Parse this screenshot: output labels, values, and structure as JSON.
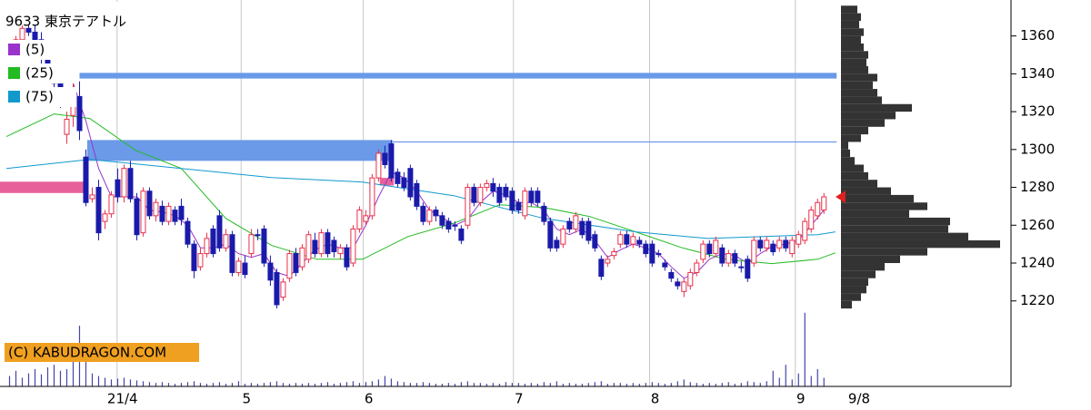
{
  "chart_data": {
    "type": "candlestick",
    "title": "9633 東京テアトル",
    "watermark": "(C) KABUDRAGON.COM",
    "last_date": "9/8",
    "xlim": [
      -1.5,
      157.4
    ],
    "ylim": [
      1210,
      1379
    ],
    "yticks": [
      1220,
      1240,
      1260,
      1280,
      1300,
      1320,
      1340,
      1360
    ],
    "xticks": [
      {
        "value": 16.9,
        "label": "21/4"
      },
      {
        "value": 36.4,
        "label": "5"
      },
      {
        "value": 55.6,
        "label": "6"
      },
      {
        "value": 79.2,
        "label": "7"
      },
      {
        "value": 100.6,
        "label": "8"
      },
      {
        "value": 123.5,
        "label": "9"
      }
    ],
    "up_color": "#e8304a",
    "down_color": "#1a1aaa",
    "ohlc": [
      [
        1352,
        1356,
        1348,
        1354
      ],
      [
        1354,
        1360,
        1350,
        1358
      ],
      [
        1358,
        1366,
        1355,
        1364
      ],
      [
        1364,
        1372,
        1360,
        1362
      ],
      [
        1362,
        1368,
        1356,
        1358
      ],
      [
        1358,
        1362,
        1345,
        1348
      ],
      [
        1348,
        1352,
        1336,
        1340
      ],
      [
        1340,
        1345,
        1330,
        1335
      ],
      [
        1335,
        1340,
        1322,
        1325
      ],
      [
        1308,
        1320,
        1303,
        1316
      ],
      [
        1318,
        1335,
        1312,
        1328
      ],
      [
        1328,
        1336,
        1305,
        1310
      ],
      [
        1296,
        1300,
        1270,
        1272
      ],
      [
        1274,
        1280,
        1272,
        1276
      ],
      [
        1280,
        1284,
        1252,
        1256
      ],
      [
        1262,
        1268,
        1258,
        1266
      ],
      [
        1266,
        1278,
        1264,
        1276
      ],
      [
        1284,
        1290,
        1272,
        1275
      ],
      [
        1275,
        1292,
        1272,
        1290
      ],
      [
        1290,
        1294,
        1272,
        1274
      ],
      [
        1274,
        1277,
        1252,
        1255
      ],
      [
        1256,
        1280,
        1254,
        1278
      ],
      [
        1278,
        1280,
        1263,
        1265
      ],
      [
        1265,
        1274,
        1262,
        1272
      ],
      [
        1270,
        1273,
        1260,
        1262
      ],
      [
        1262,
        1272,
        1260,
        1270
      ],
      [
        1268,
        1270,
        1260,
        1262
      ],
      [
        1270,
        1274,
        1260,
        1263
      ],
      [
        1262,
        1264,
        1248,
        1250
      ],
      [
        1250,
        1252,
        1232,
        1236
      ],
      [
        1238,
        1248,
        1236,
        1245
      ],
      [
        1245,
        1256,
        1243,
        1253
      ],
      [
        1258,
        1260,
        1243,
        1245
      ],
      [
        1265,
        1268,
        1246,
        1248
      ],
      [
        1248,
        1258,
        1246,
        1255
      ],
      [
        1255,
        1257,
        1233,
        1235
      ],
      [
        1235,
        1243,
        1233,
        1241
      ],
      [
        1240,
        1244,
        1232,
        1234
      ],
      [
        1245,
        1258,
        1243,
        1255
      ],
      [
        1255,
        1258,
        1252,
        1255
      ],
      [
        1258,
        1260,
        1238,
        1240
      ],
      [
        1240,
        1244,
        1228,
        1231
      ],
      [
        1235,
        1237,
        1216,
        1218
      ],
      [
        1222,
        1232,
        1220,
        1230
      ],
      [
        1232,
        1247,
        1230,
        1245
      ],
      [
        1245,
        1248,
        1233,
        1235
      ],
      [
        1238,
        1250,
        1236,
        1248
      ],
      [
        1242,
        1257,
        1240,
        1255
      ],
      [
        1252,
        1256,
        1243,
        1245
      ],
      [
        1245,
        1258,
        1243,
        1256
      ],
      [
        1256,
        1258,
        1243,
        1245
      ],
      [
        1252,
        1254,
        1243,
        1246
      ],
      [
        1245,
        1250,
        1242,
        1248
      ],
      [
        1248,
        1250,
        1236,
        1238
      ],
      [
        1240,
        1260,
        1238,
        1258
      ],
      [
        1258,
        1270,
        1256,
        1268
      ],
      [
        1262,
        1268,
        1260,
        1265
      ],
      [
        1265,
        1287,
        1263,
        1285
      ],
      [
        1285,
        1300,
        1283,
        1298
      ],
      [
        1298,
        1302,
        1290,
        1292
      ],
      [
        1303,
        1305,
        1283,
        1285
      ],
      [
        1288,
        1290,
        1280,
        1282
      ],
      [
        1285,
        1288,
        1278,
        1280
      ],
      [
        1290,
        1292,
        1273,
        1275
      ],
      [
        1282,
        1284,
        1268,
        1270
      ],
      [
        1270,
        1272,
        1260,
        1262
      ],
      [
        1262,
        1270,
        1260,
        1268
      ],
      [
        1268,
        1270,
        1262,
        1265
      ],
      [
        1265,
        1267,
        1258,
        1260
      ],
      [
        1262,
        1264,
        1256,
        1258
      ],
      [
        1260,
        1262,
        1257,
        1260
      ],
      [
        1258,
        1260,
        1250,
        1252
      ],
      [
        1260,
        1282,
        1258,
        1280
      ],
      [
        1280,
        1282,
        1270,
        1272
      ],
      [
        1272,
        1282,
        1270,
        1280
      ],
      [
        1280,
        1284,
        1278,
        1282
      ],
      [
        1282,
        1285,
        1275,
        1278
      ],
      [
        1280,
        1282,
        1270,
        1272
      ],
      [
        1280,
        1282,
        1273,
        1275
      ],
      [
        1278,
        1280,
        1266,
        1268
      ],
      [
        1272,
        1274,
        1266,
        1268
      ],
      [
        1265,
        1280,
        1263,
        1278
      ],
      [
        1278,
        1280,
        1270,
        1272
      ],
      [
        1278,
        1280,
        1270,
        1272
      ],
      [
        1270,
        1272,
        1260,
        1262
      ],
      [
        1262,
        1264,
        1246,
        1248
      ],
      [
        1252,
        1254,
        1246,
        1248
      ],
      [
        1250,
        1260,
        1248,
        1258
      ],
      [
        1262,
        1264,
        1256,
        1258
      ],
      [
        1258,
        1267,
        1256,
        1265
      ],
      [
        1262,
        1264,
        1253,
        1255
      ],
      [
        1262,
        1264,
        1250,
        1252
      ],
      [
        1255,
        1257,
        1246,
        1248
      ],
      [
        1242,
        1244,
        1231,
        1233
      ],
      [
        1240,
        1244,
        1238,
        1242
      ],
      [
        1244,
        1248,
        1242,
        1246
      ],
      [
        1250,
        1257,
        1248,
        1255
      ],
      [
        1255,
        1257,
        1248,
        1250
      ],
      [
        1250,
        1256,
        1248,
        1254
      ],
      [
        1252,
        1254,
        1248,
        1250
      ],
      [
        1250,
        1252,
        1243,
        1245
      ],
      [
        1250,
        1252,
        1238,
        1240
      ],
      [
        1245,
        1247,
        1243,
        1245
      ],
      [
        1240,
        1242,
        1236,
        1238
      ],
      [
        1235,
        1237,
        1230,
        1232
      ],
      [
        1230,
        1232,
        1226,
        1228
      ],
      [
        1225,
        1232,
        1222,
        1230
      ],
      [
        1228,
        1237,
        1226,
        1235
      ],
      [
        1235,
        1242,
        1233,
        1240
      ],
      [
        1242,
        1252,
        1240,
        1250
      ],
      [
        1250,
        1252,
        1243,
        1245
      ],
      [
        1245,
        1254,
        1243,
        1252
      ],
      [
        1248,
        1250,
        1238,
        1240
      ],
      [
        1240,
        1247,
        1238,
        1245
      ],
      [
        1245,
        1247,
        1238,
        1240
      ],
      [
        1238,
        1241,
        1235,
        1238
      ],
      [
        1242,
        1244,
        1230,
        1232
      ],
      [
        1240,
        1254,
        1238,
        1252
      ],
      [
        1252,
        1254,
        1246,
        1248
      ],
      [
        1248,
        1254,
        1246,
        1252
      ],
      [
        1250,
        1252,
        1244,
        1246
      ],
      [
        1248,
        1254,
        1246,
        1252
      ],
      [
        1252,
        1254,
        1246,
        1248
      ],
      [
        1245,
        1254,
        1243,
        1252
      ],
      [
        1250,
        1257,
        1248,
        1255
      ],
      [
        1252,
        1264,
        1250,
        1262
      ],
      [
        1258,
        1270,
        1256,
        1268
      ],
      [
        1265,
        1274,
        1263,
        1272
      ],
      [
        1268,
        1277,
        1266,
        1275
      ]
    ],
    "series": [
      {
        "name": "(5)",
        "color": "#9933cc",
        "x": [
          10,
          12,
          14,
          16,
          18,
          20,
          22,
          24,
          26,
          28,
          30,
          32,
          34,
          36,
          38,
          40,
          42,
          44,
          46,
          48,
          50,
          52,
          54,
          56,
          58,
          60,
          62,
          64,
          66,
          68,
          70,
          72,
          74,
          76,
          78,
          80,
          82,
          84,
          86,
          88,
          90,
          92,
          94,
          96,
          98,
          100,
          102,
          104,
          106,
          108,
          110,
          112,
          114,
          116,
          118,
          120,
          122,
          124,
          126,
          128
        ],
        "values": [
          1335,
          1315,
          1290,
          1275,
          1275,
          1275,
          1268,
          1267,
          1265,
          1260,
          1248,
          1248,
          1250,
          1245,
          1243,
          1245,
          1235,
          1233,
          1240,
          1247,
          1250,
          1248,
          1248,
          1260,
          1275,
          1288,
          1285,
          1278,
          1268,
          1264,
          1260,
          1263,
          1272,
          1278,
          1276,
          1272,
          1272,
          1268,
          1258,
          1255,
          1258,
          1252,
          1243,
          1247,
          1250,
          1248,
          1245,
          1238,
          1232,
          1235,
          1242,
          1245,
          1244,
          1240,
          1245,
          1249,
          1250,
          1252,
          1260,
          1268
        ]
      },
      {
        "name": "(25)",
        "color": "#22bb22",
        "x": [
          -0.5,
          7,
          12.6,
          19.8,
          27,
          34,
          41.2,
          48.3,
          55.5,
          62.6,
          69.8,
          77,
          84,
          91.2,
          98.4,
          105.5,
          112.6,
          119.8,
          127,
          129.8
        ],
        "values": [
          1306.8,
          1318.8,
          1316.4,
          1299.6,
          1290,
          1263.6,
          1249.3,
          1242,
          1242,
          1254,
          1261,
          1270.8,
          1269.4,
          1264.6,
          1256.5,
          1248.3,
          1242,
          1239.7,
          1242,
          1245.4
        ]
      },
      {
        "name": "(75)",
        "color": "#1199cc",
        "x": [
          -0.5,
          12.6,
          27,
          41.2,
          55.5,
          69.8,
          84,
          98.4,
          109.8,
          127,
          129.8
        ],
        "values": [
          1290,
          1294.8,
          1290,
          1285.2,
          1282.8,
          1275.6,
          1263.6,
          1256.5,
          1253,
          1255,
          1256.5
        ]
      }
    ],
    "zones": [
      {
        "low": 1337.5,
        "high": 1340.5,
        "from": 11,
        "to": 130,
        "color": "#6a9ae8"
      },
      {
        "low": 1294,
        "high": 1305,
        "from": 12.2,
        "to": 60.2,
        "color": "#6a9ae8"
      },
      {
        "low": 1303.7,
        "high": 1304.3,
        "from": 60.2,
        "to": 130,
        "color": "#6a9ae8"
      },
      {
        "low": 1277,
        "high": 1283,
        "from": -1.6,
        "to": 12,
        "color": "#e8609a"
      },
      {
        "low": 1281,
        "high": 1285,
        "from": 58.2,
        "to": 60.4,
        "color": "#e8609a"
      }
    ],
    "last_price": 1275,
    "volume_color": "#4444aa",
    "vlim": [
      0,
      90
    ],
    "volumes": [
      12,
      18,
      10,
      15,
      20,
      14,
      22,
      25,
      18,
      20,
      35,
      70,
      30,
      15,
      12,
      10,
      8,
      9,
      10,
      8,
      7,
      6,
      5,
      4,
      5,
      4,
      3,
      4,
      5,
      6,
      4,
      3,
      4,
      5,
      3,
      4,
      6,
      3,
      4,
      3,
      4,
      5,
      6,
      4,
      3,
      4,
      3,
      4,
      3,
      4,
      5,
      3,
      4,
      5,
      6,
      4,
      5,
      6,
      8,
      12,
      9,
      6,
      5,
      4,
      4,
      5,
      4,
      3,
      3,
      4,
      3,
      5,
      6,
      4,
      4,
      3,
      4,
      3,
      5,
      4,
      4,
      3,
      4,
      3,
      5,
      4,
      6,
      3,
      4,
      3,
      3,
      4,
      5,
      6,
      3,
      4,
      4,
      3,
      4,
      3,
      4,
      5,
      4,
      3,
      4,
      6,
      8,
      5,
      4,
      3,
      4,
      3,
      4,
      5,
      3,
      4,
      6,
      5,
      4,
      6,
      18,
      10,
      25,
      8,
      15,
      85,
      12,
      20,
      10
    ],
    "volume_profile": {
      "color": "#333333",
      "xlim": [
        0,
        185
      ],
      "bins": [
        1216,
        1220,
        1224,
        1228,
        1232,
        1236,
        1240,
        1244,
        1248,
        1252,
        1256,
        1260,
        1264,
        1268,
        1272,
        1276,
        1280,
        1284,
        1288,
        1292,
        1296,
        1300,
        1304,
        1308,
        1312,
        1316,
        1320,
        1324,
        1328,
        1332,
        1336,
        1340,
        1344,
        1348,
        1352,
        1356,
        1360,
        1364,
        1368,
        1372,
        1376
      ],
      "values": [
        12,
        22,
        28,
        30,
        38,
        48,
        65,
        95,
        175,
        140,
        118,
        120,
        75,
        95,
        80,
        55,
        40,
        30,
        25,
        15,
        10,
        8,
        22,
        30,
        48,
        60,
        78,
        45,
        40,
        35,
        40,
        30,
        28,
        30,
        25,
        22,
        25,
        20,
        22,
        18
      ]
    }
  }
}
